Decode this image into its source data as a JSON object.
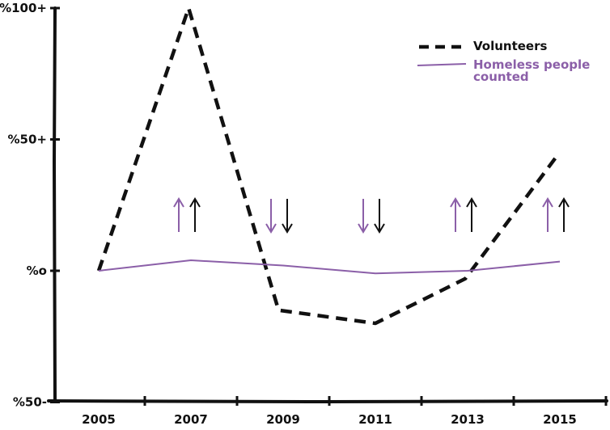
{
  "chart_data": {
    "type": "line",
    "title": "",
    "xlabel": "",
    "ylabel": "",
    "x": [
      2005,
      2007,
      2009,
      2011,
      2013,
      2015
    ],
    "x_tick_labels": [
      "2005",
      "2007",
      "2009",
      "2011",
      "2013",
      "2015"
    ],
    "y_ticks": [
      100,
      50,
      0,
      -50
    ],
    "y_tick_labels": [
      "%100+",
      "%50+",
      "%o",
      "%50-"
    ],
    "xlim": [
      2004,
      2016
    ],
    "ylim": [
      -50,
      100
    ],
    "grid": false,
    "legend_position": "top-right",
    "series": [
      {
        "name": "Volunteers",
        "style": "dashed",
        "color": "#111111",
        "points": [
          [
            2005,
            0
          ],
          [
            2006.95,
            100
          ],
          [
            2008.9,
            -15
          ],
          [
            2011,
            -20
          ],
          [
            2012.95,
            -3
          ],
          [
            2014.95,
            44
          ]
        ]
      },
      {
        "name_lines": [
          "Homeless people",
          "counted"
        ],
        "style": "solid",
        "color": "#8b5fa8",
        "points": [
          [
            2005,
            0
          ],
          [
            2007,
            4
          ],
          [
            2009,
            2
          ],
          [
            2011,
            -1
          ],
          [
            2013,
            0
          ],
          [
            2015,
            3.5
          ]
        ]
      }
    ],
    "trend_arrows": [
      {
        "x": 2007,
        "direction": "up"
      },
      {
        "x": 2009,
        "direction": "down"
      },
      {
        "x": 2011,
        "direction": "down"
      },
      {
        "x": 2013,
        "direction": "up"
      },
      {
        "x": 2015,
        "direction": "up"
      }
    ]
  }
}
